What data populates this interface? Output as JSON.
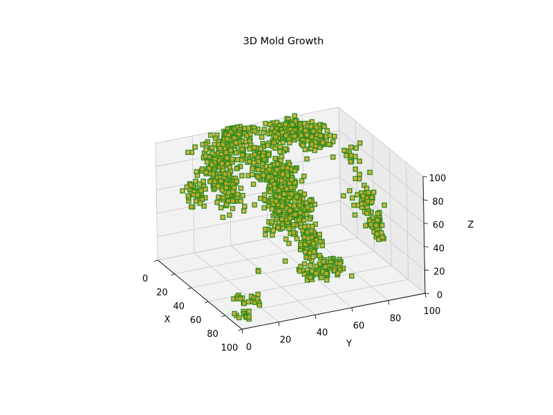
{
  "chart_data": {
    "type": "scatter",
    "subtype": "3d-voxel",
    "title": "3D Mold Growth",
    "xlabel": "X",
    "ylabel": "Y",
    "zlabel": "Z",
    "xlim": [
      0,
      100
    ],
    "ylim": [
      0,
      100
    ],
    "zlim": [
      0,
      100
    ],
    "x_ticks": [
      "0",
      "20",
      "40",
      "60",
      "80",
      "100"
    ],
    "y_ticks": [
      "0",
      "20",
      "40",
      "60",
      "80",
      "100"
    ],
    "z_ticks": [
      "0",
      "20",
      "40",
      "60",
      "80",
      "100"
    ],
    "grid": true,
    "voxel_face_color": "#c8a92c",
    "voxel_edge_color": "#2e8b1f",
    "pane_color": "#f2f2f2",
    "clusters": [
      {
        "x": 8,
        "y": 27,
        "z": 82,
        "spread": [
          5,
          4,
          7
        ],
        "count": 70
      },
      {
        "x": 18,
        "y": 30,
        "z": 68,
        "spread": [
          7,
          3,
          12
        ],
        "count": 130
      },
      {
        "x": 6,
        "y": 18,
        "z": 55,
        "spread": [
          3,
          3,
          6
        ],
        "count": 40
      },
      {
        "x": 8,
        "y": 36,
        "z": 90,
        "spread": [
          4,
          5,
          6
        ],
        "count": 60
      },
      {
        "x": 3,
        "y": 42,
        "z": 98,
        "spread": [
          4,
          5,
          4
        ],
        "count": 55
      },
      {
        "x": 22,
        "y": 47,
        "z": 86,
        "spread": [
          6,
          4,
          8
        ],
        "count": 70
      },
      {
        "x": 36,
        "y": 52,
        "z": 58,
        "spread": [
          8,
          4,
          16
        ],
        "count": 230
      },
      {
        "x": 55,
        "y": 58,
        "z": 30,
        "spread": [
          5,
          3,
          8
        ],
        "count": 80
      },
      {
        "x": 26,
        "y": 58,
        "z": 68,
        "spread": [
          6,
          4,
          8
        ],
        "count": 70
      },
      {
        "x": 32,
        "y": 65,
        "z": 44,
        "spread": [
          4,
          3,
          6
        ],
        "count": 50
      },
      {
        "x": 12,
        "y": 66,
        "z": 97,
        "spread": [
          6,
          7,
          4
        ],
        "count": 130
      },
      {
        "x": 18,
        "y": 77,
        "z": 92,
        "spread": [
          6,
          5,
          6
        ],
        "count": 80
      },
      {
        "x": 48,
        "y": 91,
        "z": 55,
        "spread": [
          5,
          3,
          6
        ],
        "count": 40
      },
      {
        "x": 64,
        "y": 90,
        "z": 40,
        "spread": [
          4,
          2,
          6
        ],
        "count": 40
      },
      {
        "x": 28,
        "y": 95,
        "z": 77,
        "spread": [
          3,
          2,
          5
        ],
        "count": 15
      },
      {
        "x": 58,
        "y": 62,
        "z": 4,
        "spread": [
          6,
          5,
          2
        ],
        "count": 45
      },
      {
        "x": 54,
        "y": 72,
        "z": 6,
        "spread": [
          5,
          4,
          2
        ],
        "count": 18
      },
      {
        "x": 74,
        "y": 18,
        "z": 4,
        "spread": [
          3,
          3,
          2
        ],
        "count": 15
      },
      {
        "x": 68,
        "y": 12,
        "z": 4,
        "spread": [
          2,
          2,
          1
        ],
        "count": 6
      },
      {
        "x": 90,
        "y": 6,
        "z": 4,
        "spread": [
          3,
          3,
          1
        ],
        "count": 12
      },
      {
        "x": 62,
        "y": 26,
        "z": 20,
        "spread": [
          1,
          1,
          1
        ],
        "count": 2
      }
    ]
  }
}
